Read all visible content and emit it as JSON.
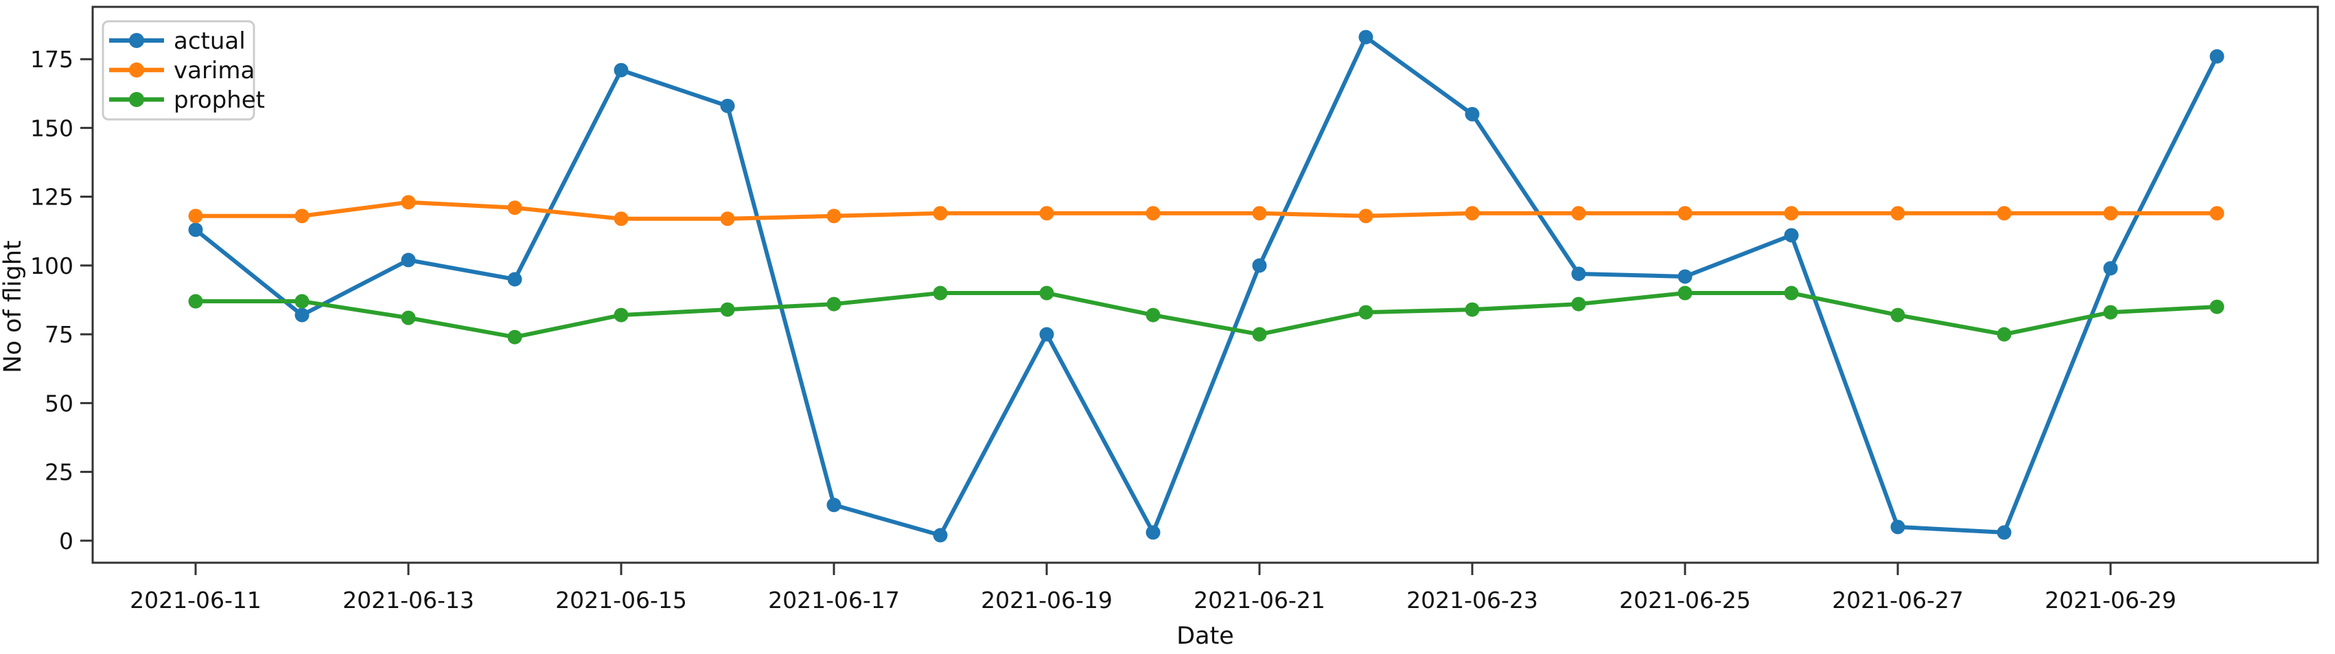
{
  "chart_data": {
    "type": "line",
    "title": "",
    "xlabel": "Date",
    "ylabel": "No of flight",
    "grid": false,
    "legend_position": "upper left",
    "marker": "o",
    "ylim": [
      -8,
      194
    ],
    "y_ticks": [
      0,
      25,
      50,
      75,
      100,
      125,
      150,
      175
    ],
    "x": [
      "2021-06-11",
      "2021-06-12",
      "2021-06-13",
      "2021-06-14",
      "2021-06-15",
      "2021-06-16",
      "2021-06-17",
      "2021-06-18",
      "2021-06-19",
      "2021-06-20",
      "2021-06-21",
      "2021-06-22",
      "2021-06-23",
      "2021-06-24",
      "2021-06-25",
      "2021-06-26",
      "2021-06-27",
      "2021-06-28",
      "2021-06-29",
      "2021-06-30"
    ],
    "x_tick_labels": [
      "2021-06-11",
      "2021-06-13",
      "2021-06-15",
      "2021-06-17",
      "2021-06-19",
      "2021-06-21",
      "2021-06-23",
      "2021-06-25",
      "2021-06-27",
      "2021-06-29"
    ],
    "series": [
      {
        "name": "actual",
        "color": "#1f77b4",
        "values": [
          113,
          82,
          102,
          95,
          171,
          158,
          13,
          2,
          75,
          3,
          100,
          183,
          155,
          97,
          96,
          111,
          5,
          3,
          99,
          176
        ]
      },
      {
        "name": "varima",
        "color": "#ff7f0e",
        "values": [
          118,
          118,
          123,
          121,
          117,
          117,
          118,
          119,
          119,
          119,
          119,
          118,
          119,
          119,
          119,
          119,
          119,
          119,
          119,
          119
        ]
      },
      {
        "name": "prophet",
        "color": "#2ca02c",
        "values": [
          87,
          87,
          81,
          74,
          82,
          84,
          86,
          90,
          90,
          82,
          75,
          83,
          84,
          86,
          90,
          90,
          82,
          75,
          83,
          85
        ]
      }
    ]
  },
  "style": {
    "background": "#ffffff",
    "plot_background": "#ffffff",
    "spine_color": "#333333",
    "tick_color": "#333333",
    "text_color": "#111111",
    "legend_border": "#cccccc",
    "legend_background": "#ffffff"
  }
}
